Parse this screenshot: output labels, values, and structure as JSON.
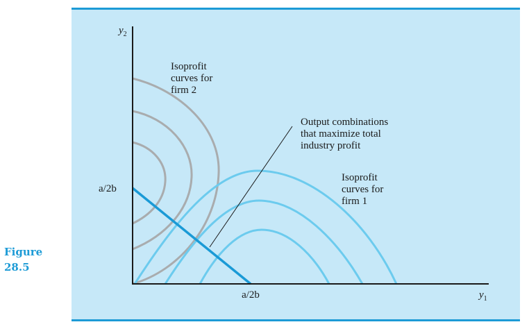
{
  "figure": {
    "label": "Figure",
    "number": "28.5"
  },
  "colors": {
    "panel": "#c6e8f8",
    "rule": "#1d9bd6",
    "firm2_curves": "#a9acae",
    "firm1_curves": "#6ccbee",
    "profit_line": "#1a9ad6",
    "axes": "#1a1a1a"
  },
  "axes": {
    "y_label_var": "y",
    "y_label_sub": "2",
    "x_label_var": "y",
    "x_label_sub": "1"
  },
  "ticks": {
    "y_intercept": "a/2b",
    "x_intercept": "a/2b"
  },
  "labels": {
    "firm2": [
      "Isoprofit",
      "curves for",
      "firm 2"
    ],
    "firm1": [
      "Isoprofit",
      "curves for",
      "firm 1"
    ],
    "profit_line": [
      "Output combinations",
      "that maximize total",
      "industry profit"
    ]
  }
}
